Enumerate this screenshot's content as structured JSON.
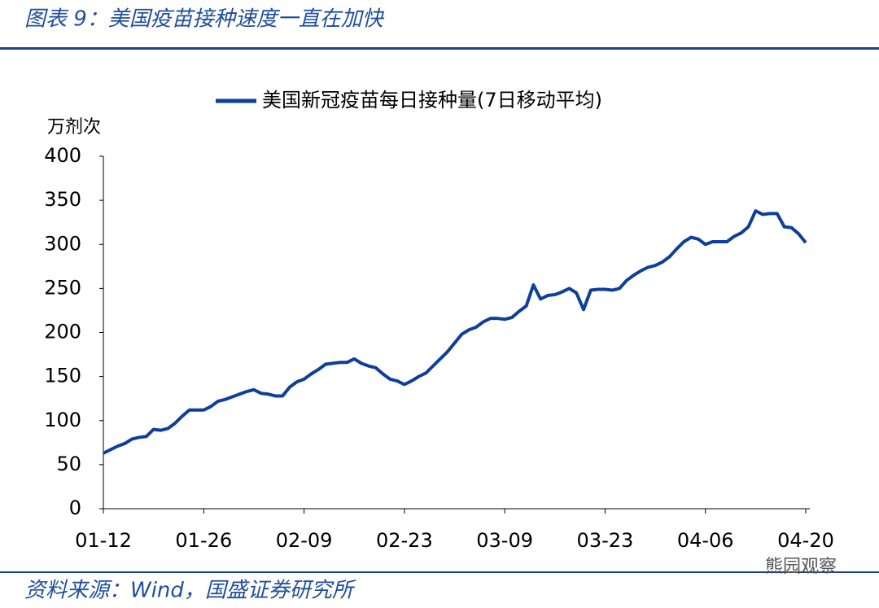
{
  "header": {
    "title": "图表 9：美国疫苗接种速度一直在加快"
  },
  "chart_data": {
    "type": "line",
    "y_label": "万剂次",
    "categories": [
      "01-12",
      null,
      null,
      null,
      null,
      null,
      null,
      null,
      null,
      null,
      null,
      null,
      null,
      null,
      "01-26",
      null,
      null,
      null,
      null,
      null,
      null,
      null,
      null,
      null,
      null,
      null,
      null,
      null,
      "02-09",
      null,
      null,
      null,
      null,
      null,
      null,
      null,
      null,
      null,
      null,
      null,
      null,
      null,
      "02-23",
      null,
      null,
      null,
      null,
      null,
      null,
      null,
      null,
      null,
      null,
      null,
      null,
      null,
      "03-09",
      null,
      null,
      null,
      null,
      null,
      null,
      null,
      null,
      null,
      null,
      null,
      null,
      null,
      "03-23",
      null,
      null,
      null,
      null,
      null,
      null,
      null,
      null,
      null,
      null,
      null,
      null,
      null,
      "04-06",
      null,
      null,
      null,
      null,
      null,
      null,
      null,
      null,
      null,
      null,
      null,
      null,
      null,
      "04-20"
    ],
    "series": [
      {
        "name": "美国新冠疫苗每日接种量(7日移动平均)",
        "color": "#0e3f9a",
        "values": [
          63,
          67,
          71,
          74,
          79,
          81,
          82,
          90,
          89,
          91,
          97,
          105,
          112,
          112,
          112,
          116,
          122,
          124,
          127,
          130,
          133,
          135,
          131,
          130,
          128,
          128,
          138,
          144,
          147,
          153,
          158,
          164,
          165,
          166,
          166,
          170,
          165,
          162,
          160,
          153,
          147,
          145,
          141,
          145,
          150,
          154,
          162,
          170,
          178,
          188,
          198,
          203,
          206,
          212,
          216,
          216,
          215,
          217,
          224,
          230,
          254,
          238,
          242,
          243,
          246,
          250,
          245,
          226,
          248,
          249,
          249,
          248,
          250,
          259,
          265,
          270,
          274,
          276,
          280,
          286,
          295,
          303,
          308,
          306,
          300,
          303,
          303,
          303,
          309,
          313,
          320,
          338,
          334,
          335,
          335,
          320,
          319,
          312,
          302
        ]
      }
    ],
    "ylim": [
      0,
      400
    ],
    "yticks": [
      0,
      50,
      100,
      150,
      200,
      250,
      300,
      350,
      400
    ],
    "grid": false
  },
  "footer": {
    "source": "资料来源：Wind，国盛证券研究所",
    "watermark": "熊园观察"
  }
}
